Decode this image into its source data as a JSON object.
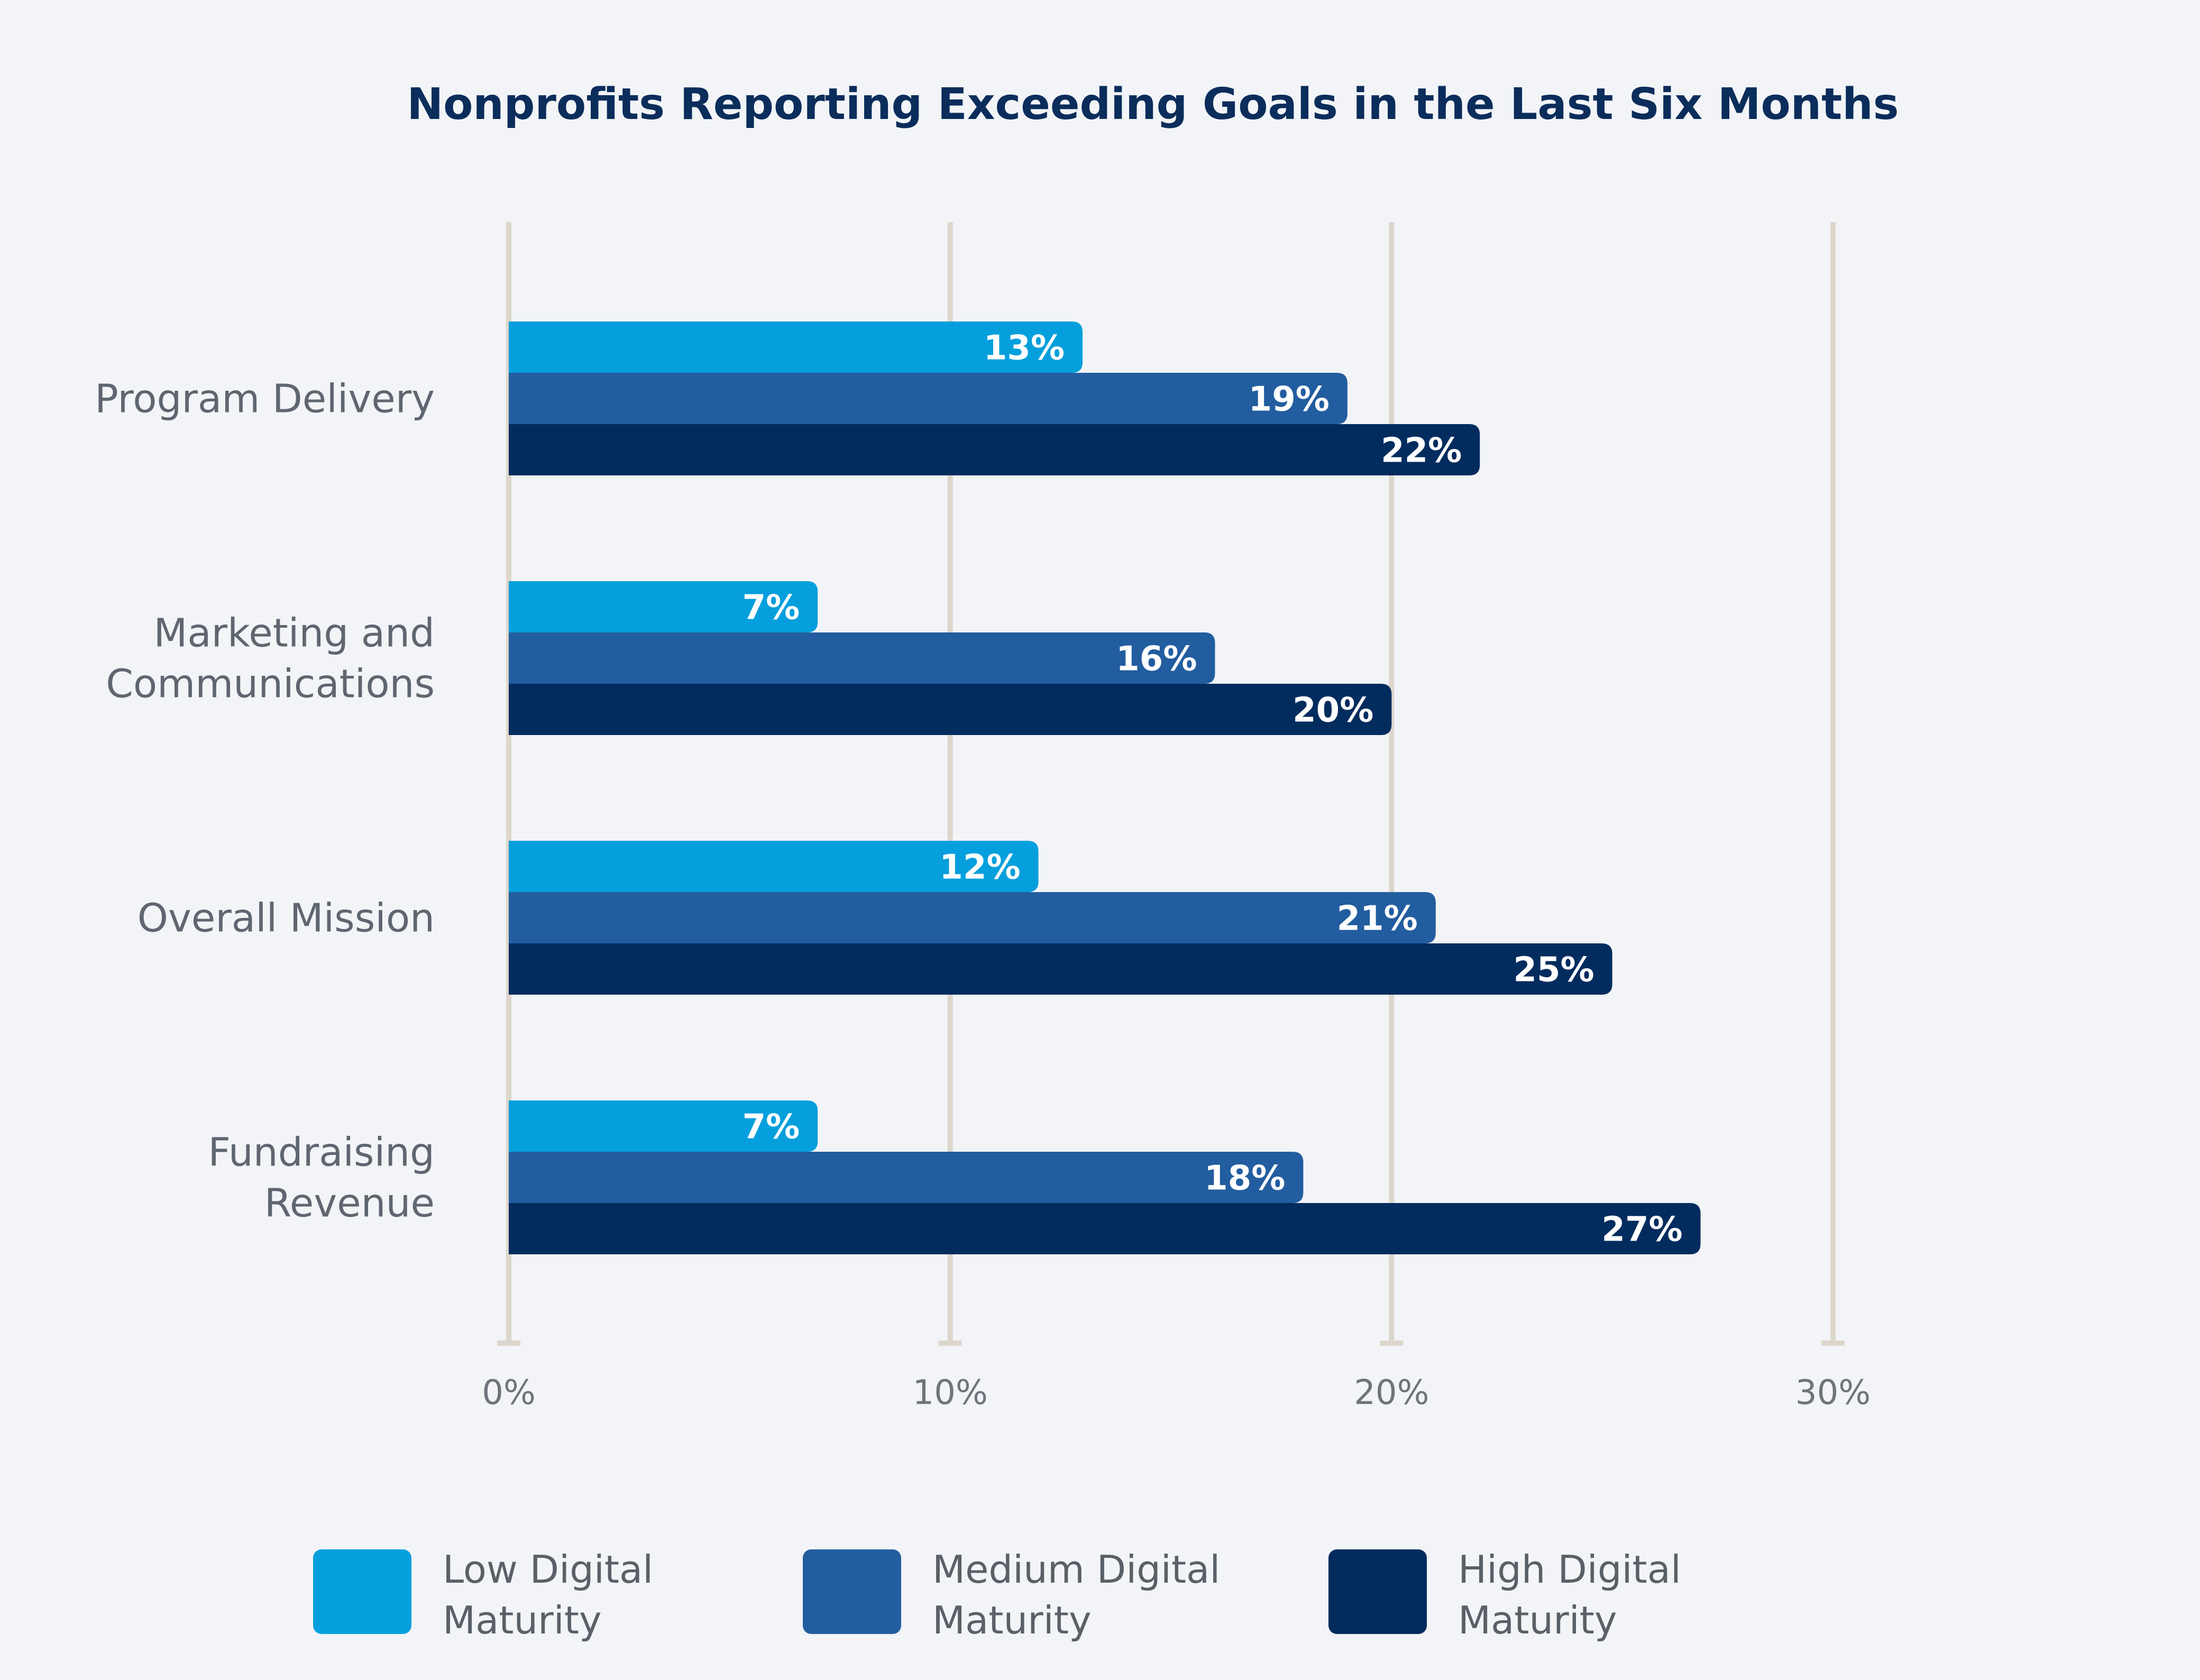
{
  "chart_data": {
    "type": "bar",
    "orientation": "horizontal",
    "title": "Nonprofits Reporting Exceeding Goals in the Last Six Months",
    "categories": [
      "Program Delivery",
      "Marketing and Communications",
      "Overall Mission",
      "Fundraising Revenue"
    ],
    "category_lines": [
      [
        "Program Delivery"
      ],
      [
        "Marketing and",
        "Communications"
      ],
      [
        "Overall Mission"
      ],
      [
        "Fundraising",
        "Revenue"
      ]
    ],
    "series": [
      {
        "name": "Low Digital Maturity",
        "legend_lines": [
          "Low Digital",
          "Maturity"
        ],
        "color": "#049fdc",
        "values": [
          13,
          7,
          12,
          7
        ],
        "labels": [
          "13%",
          "7%",
          "12%",
          "7%"
        ]
      },
      {
        "name": "Medium Digital Maturity",
        "legend_lines": [
          "Medium Digital",
          "Maturity"
        ],
        "color": "#225d9f",
        "values": [
          19,
          16,
          21,
          18
        ],
        "labels": [
          "19%",
          "16%",
          "21%",
          "18%"
        ]
      },
      {
        "name": "High Digital Maturity",
        "legend_lines": [
          "High Digital",
          "Maturity"
        ],
        "color": "#022c5e",
        "values": [
          22,
          20,
          25,
          27
        ],
        "labels": [
          "22%",
          "20%",
          "25%",
          "27%"
        ]
      }
    ],
    "xlim": [
      0,
      30
    ],
    "xticks": [
      0,
      10,
      20,
      30
    ],
    "xtick_labels": [
      "0%",
      "10%",
      "20%",
      "30%"
    ],
    "xlabel": "",
    "ylabel": "",
    "grid": true,
    "legend_position": "bottom"
  },
  "colors": {
    "background": "#f2f4f7",
    "gridline": "#ddd6cc",
    "title": "#0b2d5b"
  }
}
